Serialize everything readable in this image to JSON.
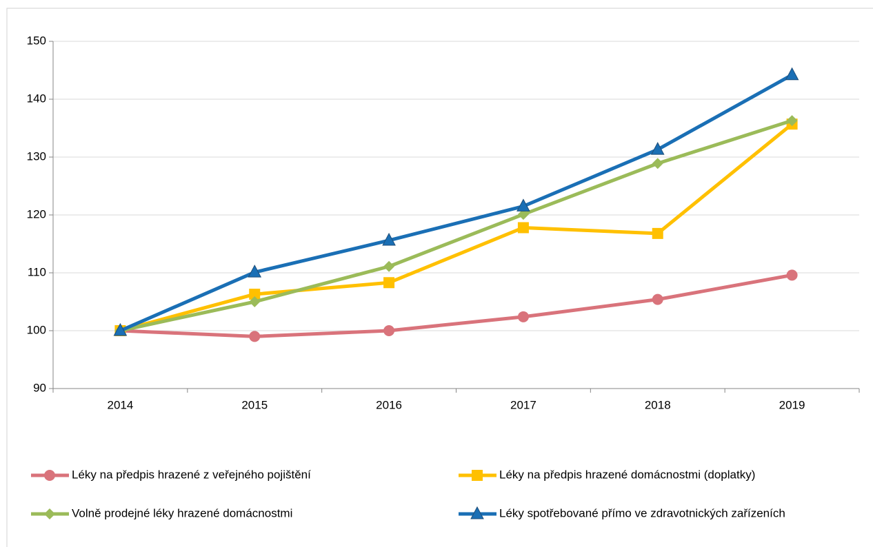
{
  "chart_data": {
    "type": "line",
    "categories": [
      "2014",
      "2015",
      "2016",
      "2017",
      "2018",
      "2019"
    ],
    "series": [
      {
        "name": "Léky na předpis hrazené z veřejného pojištění",
        "color": "#d9737b",
        "marker": "circle",
        "values": [
          100,
          99.0,
          100,
          102.4,
          105.4,
          109.6
        ]
      },
      {
        "name": "Léky na předpis hrazené domácnostmi (doplatky)",
        "color": "#ffc000",
        "marker": "square",
        "values": [
          100,
          106.3,
          108.3,
          117.8,
          116.8,
          135.7
        ]
      },
      {
        "name": "Volně prodejné léky hrazené domácnostmi",
        "color": "#9bbb59",
        "marker": "diamond",
        "values": [
          100,
          105.0,
          111.1,
          120.1,
          128.9,
          136.3
        ]
      },
      {
        "name": "Léky spotřebované přímo ve zdravotnických zařízeních",
        "color": "#1a6fb5",
        "marker": "triangle",
        "values": [
          100,
          110.1,
          115.6,
          121.5,
          131.3,
          144.2
        ]
      }
    ],
    "ylim": [
      90,
      150
    ],
    "yticks": [
      90,
      100,
      110,
      120,
      130,
      140,
      150
    ],
    "grid": true,
    "legend": "bottom"
  }
}
